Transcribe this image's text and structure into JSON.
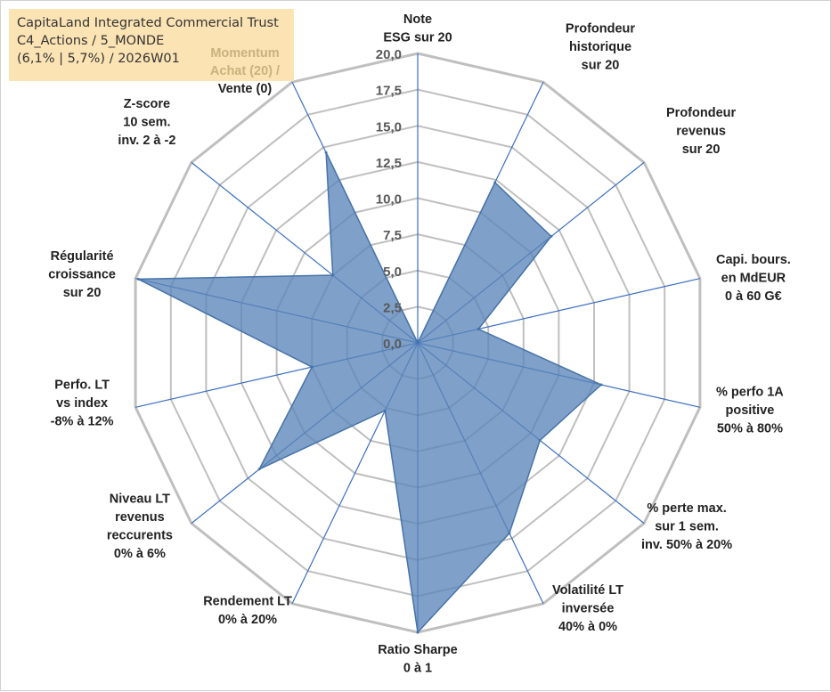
{
  "info": {
    "line1": "CapitaLand Integrated Commercial Trust",
    "line2": "C4_Actions / 5_MONDE",
    "line3": "(6,1% | 5,7%) / 2026W01"
  },
  "colors": {
    "fill": "#5b85b8",
    "stroke": "#4673aa",
    "grid": "#bfbfbf",
    "spoke": "#3c6fc0",
    "box": "#fbe3b4"
  },
  "chart_data": {
    "type": "radar",
    "title": "",
    "range": [
      0,
      20
    ],
    "ticks": [
      "0,0",
      "2,5",
      "5,0",
      "7,5",
      "10,0",
      "12,5",
      "15,0",
      "17,5",
      "20,0"
    ],
    "axes": [
      [
        "Note",
        "ESG sur 20"
      ],
      [
        "Profondeur",
        "historique",
        "sur 20"
      ],
      [
        "Profondeur",
        "revenus",
        "sur 20"
      ],
      [
        "Capi. bours.",
        "en MdEUR",
        "0 à 60 G€"
      ],
      [
        "% perfo 1A",
        "positive",
        "50% à 80%"
      ],
      [
        "% perte max.",
        "sur 1 sem.",
        "inv. 50% à 20%"
      ],
      [
        "Volatilité LT",
        "inversée",
        "40% à 0%"
      ],
      [
        "Ratio Sharpe",
        "0 à 1"
      ],
      [
        "Rendement LT",
        "0% à 20%"
      ],
      [
        "Niveau LT",
        "revenus",
        "reccurents",
        "0% à 6%"
      ],
      [
        "Perfo. LT",
        "vs index",
        "-8% à 12%"
      ],
      [
        "Régularité",
        "croissance",
        "sur 20"
      ],
      [
        "Z-score",
        "10 sem.",
        "inv. 2 à -2"
      ],
      [
        "Momentum",
        "Achat (20) /",
        "Vente (0)"
      ]
    ],
    "values": [
      0,
      12.3,
      11.8,
      4.3,
      13.0,
      10.8,
      14.6,
      20.0,
      5.2,
      14.0,
      7.5,
      19.8,
      7.5,
      14.6
    ]
  }
}
